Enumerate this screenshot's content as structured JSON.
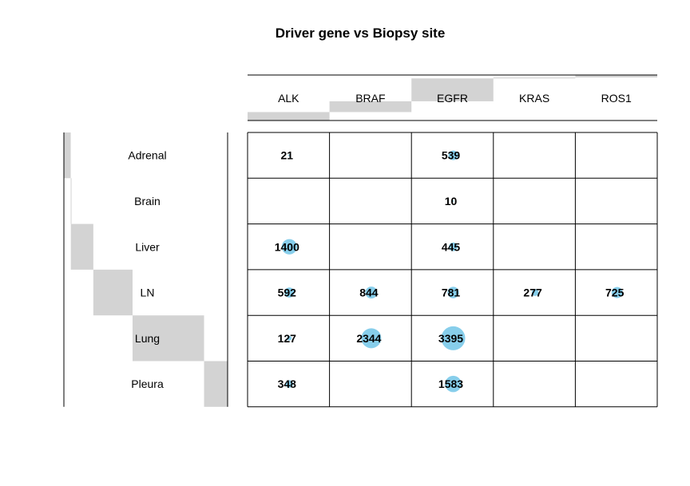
{
  "chart_data": {
    "type": "table",
    "title": "Driver gene vs Biopsy site",
    "columns": [
      "ALK",
      "BRAF",
      "EGFR",
      "KRAS",
      "ROS1"
    ],
    "rows": [
      "Adrenal",
      "Brain",
      "Liver",
      "LN",
      "Lung",
      "Pleura"
    ],
    "values": [
      [
        21,
        null,
        539,
        null,
        null
      ],
      [
        null,
        null,
        10,
        null,
        null
      ],
      [
        1400,
        null,
        445,
        null,
        null
      ],
      [
        592,
        844,
        781,
        277,
        725
      ],
      [
        127,
        2344,
        3395,
        null,
        null
      ],
      [
        348,
        null,
        1583,
        null,
        null
      ]
    ],
    "column_totals_bar": true,
    "row_totals_bar": true,
    "grid": true
  },
  "colors": {
    "bubble": "#87CEEB",
    "margin_bar": "#D3D3D3",
    "grid": "#000000"
  }
}
